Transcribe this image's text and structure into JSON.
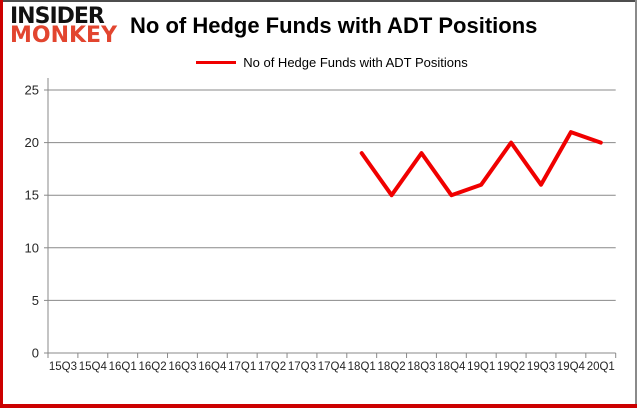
{
  "logo": {
    "line1": "INSIDER",
    "line2": "MONKEY"
  },
  "header": {
    "title": "No of Hedge Funds with ADT Positions"
  },
  "legend": {
    "label": "No of Hedge Funds with ADT Positions"
  },
  "colors": {
    "line": "#f00000",
    "logo_black": "#111111",
    "logo_red": "#e2452f",
    "grid": "#898989",
    "axis": "#898989",
    "tick_label": "#262626",
    "border_red": "#cc0000"
  },
  "chart_data": {
    "type": "line",
    "title": "No of Hedge Funds with ADT Positions",
    "categories": [
      "15Q3",
      "15Q4",
      "16Q1",
      "16Q2",
      "16Q3",
      "16Q4",
      "17Q1",
      "17Q2",
      "17Q3",
      "17Q4",
      "18Q1",
      "18Q2",
      "18Q3",
      "18Q4",
      "19Q1",
      "19Q2",
      "19Q3",
      "19Q4",
      "20Q1"
    ],
    "series": [
      {
        "name": "No of Hedge Funds with ADT Positions",
        "values": [
          null,
          null,
          null,
          null,
          null,
          null,
          null,
          null,
          null,
          null,
          19,
          15,
          19,
          15,
          16,
          20,
          16,
          21,
          20
        ]
      }
    ],
    "xlabel": "",
    "ylabel": "",
    "ylim": [
      0,
      25
    ],
    "yticks": [
      0,
      5,
      10,
      15,
      20,
      25
    ],
    "grid": "horizontal",
    "legend_position": "top-center"
  }
}
